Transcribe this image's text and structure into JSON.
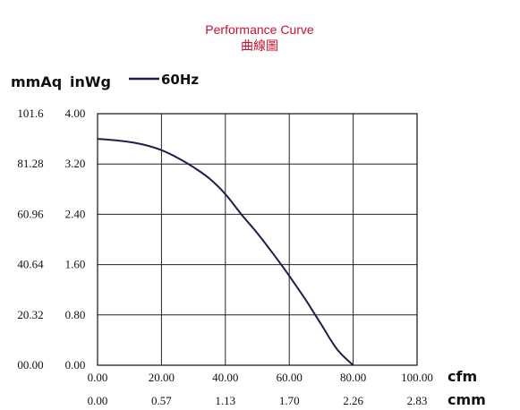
{
  "chart_data": {
    "type": "line",
    "title": "Performance Curve",
    "subtitle": "曲線圖",
    "title_color": "#c8102e",
    "line_color": "#1b1f4a",
    "grid": true,
    "ylabel_left": "mmAq",
    "ylabel_right": "inWg",
    "xlabel_top": "cfm",
    "xlabel_bottom": "cmm",
    "xlim": [
      0,
      100
    ],
    "ylim": [
      0,
      4.0
    ],
    "x_ticks_cfm": [
      "0.00",
      "20.00",
      "40.00",
      "60.00",
      "80.00",
      "100.00"
    ],
    "x_ticks_cmm": [
      "0.00",
      "0.57",
      "1.13",
      "1.70",
      "2.26",
      "2.83"
    ],
    "y_ticks_inwg": [
      "0.00",
      "0.80",
      "1.60",
      "2.40",
      "3.20",
      "4.00"
    ],
    "y_ticks_mmaq": [
      "00.00",
      "20.32",
      "40.64",
      "60.96",
      "81.28",
      "101.6"
    ],
    "legend_position": "top",
    "series": [
      {
        "name": "60Hz",
        "x": [
          0,
          5,
          10,
          15,
          20,
          25,
          30,
          35,
          40,
          45,
          50,
          55,
          60,
          65,
          70,
          75,
          80
        ],
        "y": [
          3.6,
          3.58,
          3.55,
          3.5,
          3.42,
          3.3,
          3.15,
          2.97,
          2.72,
          2.4,
          2.1,
          1.77,
          1.42,
          1.05,
          0.65,
          0.25,
          0.0
        ]
      }
    ]
  }
}
